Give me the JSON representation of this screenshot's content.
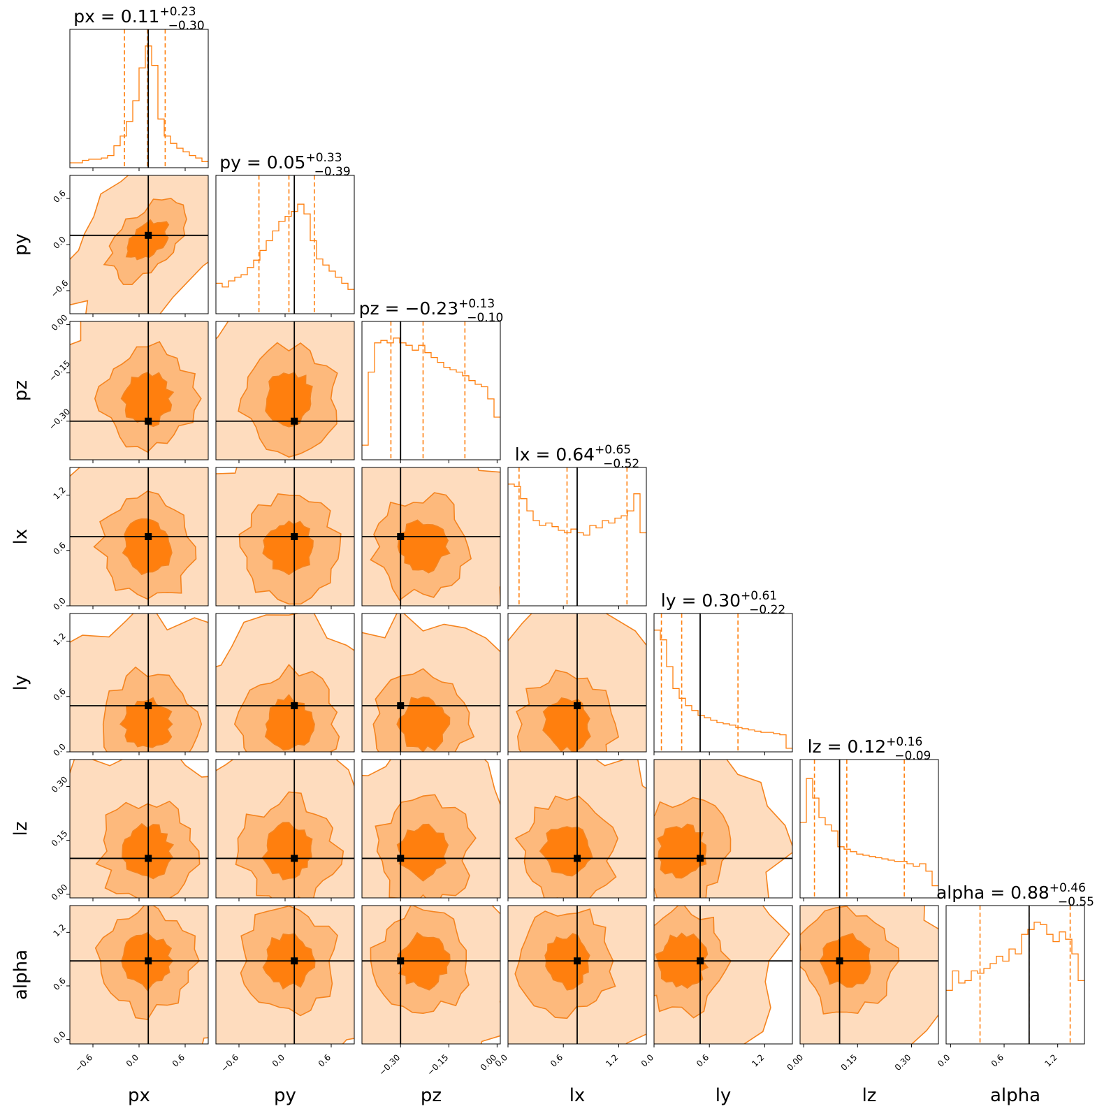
{
  "chart_data": {
    "type": "corner",
    "title": "",
    "colors": {
      "fill": "#ff7f0e",
      "truth": "#000000"
    },
    "contour_levels": 3,
    "parameters": [
      {
        "name": "px",
        "title": "px = 0.11",
        "sup": "+0.23",
        "sub": "−0.30",
        "median": 0.11,
        "q_lo": -0.19,
        "q_hi": 0.34,
        "truth": 0.12,
        "range": [
          -0.9,
          0.9
        ],
        "ticks": [
          "−0.6",
          "0.0",
          "0.6"
        ],
        "tick_values": [
          -0.6,
          0.0,
          0.6
        ]
      },
      {
        "name": "py",
        "title": "py = 0.05",
        "sup": "+0.33",
        "sub": "−0.39",
        "median": 0.05,
        "q_lo": -0.34,
        "q_hi": 0.38,
        "truth": 0.12,
        "range": [
          -0.9,
          0.9
        ],
        "ticks": [
          "−0.6",
          "0.0",
          "0.6"
        ],
        "tick_values": [
          -0.6,
          0.0,
          0.6
        ]
      },
      {
        "name": "pz",
        "title": "pz = −0.23",
        "sup": "+0.13",
        "sub": "−0.10",
        "median": -0.23,
        "q_lo": -0.33,
        "q_hi": -0.1,
        "truth": -0.3,
        "range": [
          -0.42,
          0.01
        ],
        "ticks": [
          "−0.30",
          "−0.15",
          "0.00"
        ],
        "tick_values": [
          -0.3,
          -0.15,
          0.0
        ]
      },
      {
        "name": "lx",
        "title": "lx = 0.64",
        "sup": "+0.65",
        "sub": "−0.52",
        "median": 0.64,
        "q_lo": 0.12,
        "q_hi": 1.29,
        "truth": 0.75,
        "range": [
          0.0,
          1.5
        ],
        "ticks": [
          "0.0",
          "0.6",
          "1.2"
        ],
        "tick_values": [
          0.0,
          0.6,
          1.2
        ]
      },
      {
        "name": "ly",
        "title": "ly = 0.30",
        "sup": "+0.61",
        "sub": "−0.22",
        "median": 0.3,
        "q_lo": 0.08,
        "q_hi": 0.91,
        "truth": 0.5,
        "range": [
          0.0,
          1.5
        ],
        "ticks": [
          "0.0",
          "0.6",
          "1.2"
        ],
        "tick_values": [
          0.0,
          0.6,
          1.2
        ]
      },
      {
        "name": "lz",
        "title": "lz = 0.12",
        "sup": "+0.16",
        "sub": "−0.09",
        "median": 0.12,
        "q_lo": 0.03,
        "q_hi": 0.28,
        "truth": 0.1,
        "range": [
          -0.01,
          0.375
        ],
        "ticks": [
          "0.00",
          "0.15",
          "0.30"
        ],
        "tick_values": [
          0.0,
          0.15,
          0.3
        ]
      },
      {
        "name": "alpha",
        "title": "alpha = 0.88",
        "sup": "+0.46",
        "sub": "−0.55",
        "median": 0.88,
        "q_lo": 0.33,
        "q_hi": 1.34,
        "truth": 0.88,
        "range": [
          -0.05,
          1.5
        ],
        "ticks": [
          "0.0",
          "0.6",
          "1.2"
        ],
        "tick_values": [
          0.0,
          0.6,
          1.2
        ]
      }
    ],
    "histograms": [
      [
        0.04,
        0.04,
        0.06,
        0.07,
        0.07,
        0.08,
        0.1,
        0.18,
        0.26,
        0.38,
        0.55,
        0.82,
        1.0,
        0.84,
        0.4,
        0.26,
        0.2,
        0.16,
        0.13,
        0.1,
        0.08,
        0.05
      ],
      [
        0.25,
        0.22,
        0.27,
        0.3,
        0.32,
        0.38,
        0.44,
        0.52,
        0.6,
        0.68,
        0.76,
        0.8,
        0.84,
        0.9,
        0.82,
        0.6,
        0.45,
        0.4,
        0.35,
        0.3,
        0.25,
        0.2
      ],
      [
        0.12,
        0.72,
        0.96,
        0.98,
        0.96,
        1.0,
        0.96,
        0.94,
        0.9,
        0.94,
        0.88,
        0.84,
        0.8,
        0.76,
        0.74,
        0.72,
        0.69,
        0.65,
        0.62,
        0.6,
        0.5,
        0.35
      ],
      [
        1.0,
        0.98,
        0.88,
        0.78,
        0.7,
        0.66,
        0.68,
        0.65,
        0.62,
        0.6,
        0.63,
        0.6,
        0.58,
        0.66,
        0.64,
        0.7,
        0.68,
        0.72,
        0.74,
        0.78,
        0.92,
        0.6
      ],
      [
        1.0,
        0.92,
        0.7,
        0.52,
        0.44,
        0.38,
        0.34,
        0.3,
        0.28,
        0.26,
        0.24,
        0.23,
        0.22,
        0.2,
        0.19,
        0.18,
        0.17,
        0.16,
        0.16,
        0.15,
        0.14,
        0.03
      ],
      [
        0.62,
        0.98,
        0.82,
        0.66,
        0.6,
        0.55,
        0.42,
        0.4,
        0.38,
        0.36,
        0.35,
        0.34,
        0.33,
        0.32,
        0.31,
        0.3,
        0.3,
        0.28,
        0.26,
        0.28,
        0.22,
        0.1
      ],
      [
        0.44,
        0.6,
        0.5,
        0.52,
        0.6,
        0.58,
        0.62,
        0.66,
        0.72,
        0.68,
        0.78,
        0.74,
        0.9,
        0.94,
        1.0,
        0.98,
        0.9,
        0.84,
        0.92,
        0.86,
        0.74,
        0.52
      ]
    ],
    "joint": [
      {
        "x": "px",
        "y": "py",
        "rho": 0.55
      },
      {
        "x": "px",
        "y": "pz",
        "rho": 0.0
      },
      {
        "x": "py",
        "y": "pz",
        "rho": 0.0
      },
      {
        "x": "pz",
        "y": "lx",
        "rho": 0.0
      },
      {
        "x": "px",
        "y": "lx",
        "rho": 0.0
      },
      {
        "x": "py",
        "y": "lx",
        "rho": 0.0
      },
      {
        "x": "px",
        "y": "ly",
        "rho": 0.0
      },
      {
        "x": "py",
        "y": "ly",
        "rho": 0.0
      },
      {
        "x": "pz",
        "y": "ly",
        "rho": 0.0
      },
      {
        "x": "lx",
        "y": "ly",
        "rho": 0.0
      },
      {
        "x": "px",
        "y": "lz",
        "rho": 0.0
      },
      {
        "x": "py",
        "y": "lz",
        "rho": 0.0
      },
      {
        "x": "pz",
        "y": "lz",
        "rho": 0.0
      },
      {
        "x": "lx",
        "y": "lz",
        "rho": 0.0
      },
      {
        "x": "ly",
        "y": "lz",
        "rho": 0.0
      },
      {
        "x": "px",
        "y": "alpha",
        "rho": 0.0
      },
      {
        "x": "py",
        "y": "alpha",
        "rho": 0.0
      },
      {
        "x": "pz",
        "y": "alpha",
        "rho": 0.0
      },
      {
        "x": "lx",
        "y": "alpha",
        "rho": 0.0
      },
      {
        "x": "ly",
        "y": "alpha",
        "rho": 0.0
      },
      {
        "x": "lz",
        "y": "alpha",
        "rho": 0.0
      }
    ]
  }
}
